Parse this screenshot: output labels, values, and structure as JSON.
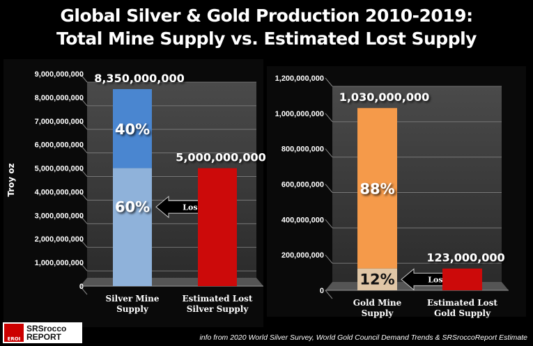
{
  "title_lines": [
    "Global Silver & Gold Production 2010-2019:",
    "Total Mine Supply vs. Estimated Lost Supply"
  ],
  "source": "info from 2020 World Silver Survey, World Gold Council Demand Trends & SRSroccoReport Estimate",
  "logo": {
    "mark": "EROI",
    "line1": "SRSrocco",
    "line2": "REPORT"
  },
  "chart_data": [
    {
      "type": "bar",
      "ylabel": "Troy oz",
      "ylim": [
        0,
        9000000000
      ],
      "yticks": [
        "0",
        "1,000,000,000",
        "2,000,000,000",
        "3,000,000,000",
        "4,000,000,000",
        "5,000,000,000",
        "6,000,000,000",
        "7,000,000,000",
        "8,000,000,000",
        "9,000,000,000"
      ],
      "categories": [
        [
          "Silver Mine",
          "Supply"
        ],
        [
          "Estimated Lost",
          "Silver Supply"
        ]
      ],
      "values": [
        8350000000,
        5000000000
      ],
      "value_labels": [
        "8,350,000,000",
        "5,000,000,000"
      ],
      "split": {
        "bar": 0,
        "lower_value": 5000000000,
        "lower_label": "60%",
        "upper_label": "40%"
      },
      "arrow_label": "Loss",
      "colors": {
        "upper": "#4a86d0",
        "lower": "#8fb2da",
        "lost": "#cc0a0a"
      }
    },
    {
      "type": "bar",
      "ylim": [
        0,
        1200000000
      ],
      "yticks": [
        "0",
        "200,000,000",
        "400,000,000",
        "600,000,000",
        "800,000,000",
        "1,000,000,000",
        "1,200,000,000"
      ],
      "categories": [
        [
          "Gold Mine",
          "Supply"
        ],
        [
          "Estimated Lost",
          "Gold Supply"
        ]
      ],
      "values": [
        1030000000,
        123000000
      ],
      "value_labels": [
        "1,030,000,000",
        "123,000,000"
      ],
      "split": {
        "bar": 0,
        "lower_value": 123000000,
        "lower_label": "12%",
        "upper_label": "88%"
      },
      "arrow_label": "Loss",
      "colors": {
        "upper": "#f59a4a",
        "lower": "#e0c6a6",
        "lost": "#cc0a0a"
      }
    }
  ]
}
